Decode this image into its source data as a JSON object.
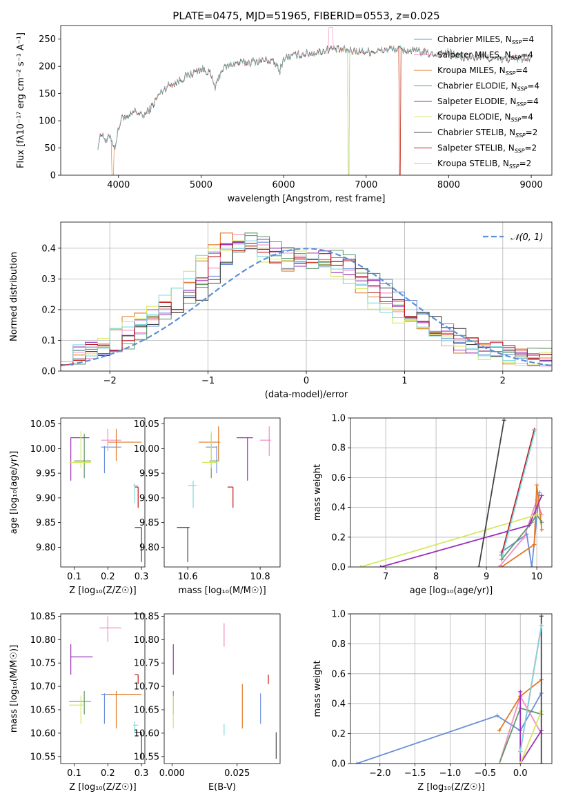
{
  "colors": {
    "chabrier_miles": "#6a8fd8",
    "salpeter_miles": "#f08cc0",
    "kroupa_miles": "#e07a25",
    "chabrier_elodie": "#5f9a68",
    "salpeter_elodie": "#9a30b8",
    "kroupa_elodie": "#d6e860",
    "chabrier_stelib": "#444444",
    "salpeter_stelib": "#c01818",
    "kroupa_stelib": "#7fd8e0",
    "gauss": "#5b8fd6"
  },
  "chart_data": [
    {
      "id": "spectrum",
      "type": "line",
      "title": "PLATE=0475, MJD=51965, FIBERID=0553, z=0.025",
      "xlabel": "wavelength [Angstrom, rest frame]",
      "ylabel": "Flux [fλ10⁻¹⁷ erg cm⁻² s⁻¹ A⁻¹]",
      "xlim": [
        3300,
        9250
      ],
      "ylim": [
        0,
        275
      ],
      "xticks": [
        4000,
        5000,
        6000,
        7000,
        8000,
        9000
      ],
      "yticks": [
        0,
        50,
        100,
        150,
        200,
        250
      ],
      "legend_position": "top-right",
      "legend": [
        "Chabrier MILES, N_SSP=4",
        "Salpeter MILES, N_SSP=4",
        "Kroupa MILES, N_SSP=4",
        "Chabrier ELODIE, N_SSP=4",
        "Salpeter ELODIE, N_SSP=4",
        "Kroupa ELODIE, N_SSP=4",
        "Chabrier STELIB, N_SSP=2",
        "Salpeter STELIB, N_SSP=2",
        "Kroupa STELIB, N_SSP=2"
      ],
      "continuum": [
        [
          3750,
          55
        ],
        [
          3800,
          80
        ],
        [
          3850,
          60
        ],
        [
          3900,
          75
        ],
        [
          3950,
          48
        ],
        [
          4000,
          85
        ],
        [
          4050,
          110
        ],
        [
          4100,
          102
        ],
        [
          4200,
          118
        ],
        [
          4300,
          108
        ],
        [
          4400,
          125
        ],
        [
          4500,
          150
        ],
        [
          4600,
          165
        ],
        [
          4700,
          170
        ],
        [
          4800,
          180
        ],
        [
          4900,
          188
        ],
        [
          5000,
          195
        ],
        [
          5100,
          190
        ],
        [
          5175,
          160
        ],
        [
          5250,
          195
        ],
        [
          5400,
          205
        ],
        [
          5600,
          208
        ],
        [
          5800,
          212
        ],
        [
          5900,
          205
        ],
        [
          5950,
          190
        ],
        [
          6000,
          215
        ],
        [
          6200,
          222
        ],
        [
          6400,
          225
        ],
        [
          6563,
          232
        ],
        [
          6700,
          230
        ],
        [
          6900,
          228
        ],
        [
          7100,
          227
        ],
        [
          7300,
          232
        ],
        [
          7600,
          228
        ],
        [
          7800,
          222
        ],
        [
          8000,
          225
        ],
        [
          8200,
          215
        ],
        [
          8400,
          218
        ],
        [
          8600,
          212
        ],
        [
          8800,
          215
        ],
        [
          8990,
          213
        ]
      ]
    },
    {
      "id": "residuals",
      "type": "histogram",
      "xlabel": "(data-model)/error",
      "ylabel": "Normed distribution",
      "xlim": [
        -2.5,
        2.5
      ],
      "ylim": [
        0,
        0.485
      ],
      "xticks": [
        -2,
        -1,
        0,
        1,
        2
      ],
      "yticks": [
        0.0,
        0.1,
        0.2,
        0.3,
        0.4
      ],
      "legend_position": "top-right",
      "gauss_label": "𝒩(0, 1)",
      "shape": [
        0.05,
        0.06,
        0.065,
        0.07,
        0.09,
        0.12,
        0.15,
        0.18,
        0.2,
        0.23,
        0.26,
        0.31,
        0.36,
        0.4,
        0.42,
        0.415,
        0.4,
        0.38,
        0.36,
        0.35,
        0.37,
        0.37,
        0.35,
        0.33,
        0.3,
        0.27,
        0.23,
        0.2,
        0.18,
        0.15,
        0.13,
        0.11,
        0.095,
        0.08,
        0.07,
        0.065,
        0.06,
        0.05,
        0.045,
        0.04
      ]
    },
    {
      "id": "age_vs_Z",
      "type": "scatter",
      "xlabel": "Z [log₁₀(Z/Z☉)]",
      "ylabel": "age  [log₁₀(age/yr)]",
      "xlim": [
        0.06,
        0.31
      ],
      "ylim": [
        9.76,
        10.062
      ],
      "xticks": [
        0.1,
        0.2,
        0.3
      ],
      "yticks": [
        9.8,
        9.85,
        9.9,
        9.95,
        10.0,
        10.05
      ],
      "points": [
        {
          "s": "chabrier_miles",
          "x": 0.19,
          "y": 10.003,
          "xlo": 0.18,
          "xhi": 0.24,
          "ylo": 9.95,
          "yhi": 10.005
        },
        {
          "s": "salpeter_miles",
          "x": 0.2,
          "y": 10.017,
          "xlo": 0.18,
          "xhi": 0.24,
          "ylo": 9.995,
          "yhi": 10.04
        },
        {
          "s": "kroupa_miles",
          "x": 0.225,
          "y": 10.013,
          "xlo": 0.2,
          "xhi": 0.3,
          "ylo": 9.975,
          "yhi": 10.04
        },
        {
          "s": "chabrier_elodie",
          "x": 0.13,
          "y": 9.975,
          "xlo": 0.1,
          "xhi": 0.15,
          "ylo": 9.94,
          "yhi": 10.03
        },
        {
          "s": "salpeter_elodie",
          "x": 0.09,
          "y": 10.022,
          "xlo": 0.09,
          "xhi": 0.145,
          "ylo": 9.935,
          "yhi": 10.022
        },
        {
          "s": "kroupa_elodie",
          "x": 0.12,
          "y": 9.972,
          "xlo": 0.085,
          "xhi": 0.15,
          "ylo": 9.96,
          "yhi": 10.035
        },
        {
          "s": "chabrier_stelib",
          "x": 0.3,
          "y": 9.84,
          "xlo": 0.28,
          "xhi": 0.3,
          "ylo": 9.77,
          "yhi": 9.84
        },
        {
          "s": "salpeter_stelib",
          "x": 0.29,
          "y": 9.922,
          "xlo": 0.28,
          "xhi": 0.29,
          "ylo": 9.88,
          "yhi": 9.922
        },
        {
          "s": "kroupa_stelib",
          "x": 0.28,
          "y": 9.925,
          "xlo": 0.275,
          "xhi": 0.29,
          "ylo": 9.89,
          "yhi": 9.93
        }
      ]
    },
    {
      "id": "age_vs_mass",
      "type": "scatter",
      "xlabel": "mass [log₁₀(M/M☉)]",
      "ylabel": "",
      "xlim": [
        10.535,
        10.855
      ],
      "ylim": [
        9.76,
        10.062
      ],
      "xticks": [
        10.6,
        10.8
      ],
      "yticks": [
        9.8,
        9.85,
        9.9,
        9.95,
        10.0,
        10.05
      ],
      "points": [
        {
          "s": "chabrier_miles",
          "x": 10.68,
          "y": 10.003,
          "xlo": 10.65,
          "xhi": 10.68,
          "ylo": 9.95,
          "yhi": 10.005
        },
        {
          "s": "salpeter_miles",
          "x": 10.825,
          "y": 10.017,
          "xlo": 10.8,
          "xhi": 10.83,
          "ylo": 9.985,
          "yhi": 10.045
        },
        {
          "s": "kroupa_miles",
          "x": 10.685,
          "y": 10.013,
          "xlo": 10.63,
          "xhi": 10.69,
          "ylo": 9.975,
          "yhi": 10.045
        },
        {
          "s": "chabrier_elodie",
          "x": 10.665,
          "y": 9.975,
          "xlo": 10.66,
          "xhi": 10.685,
          "ylo": 9.94,
          "yhi": 10.03
        },
        {
          "s": "salpeter_elodie",
          "x": 10.765,
          "y": 10.022,
          "xlo": 10.735,
          "xhi": 10.78,
          "ylo": 9.935,
          "yhi": 10.022
        },
        {
          "s": "kroupa_elodie",
          "x": 10.665,
          "y": 9.972,
          "xlo": 10.64,
          "xhi": 10.68,
          "ylo": 9.96,
          "yhi": 10.035
        },
        {
          "s": "chabrier_stelib",
          "x": 10.6,
          "y": 9.84,
          "xlo": 10.57,
          "xhi": 10.605,
          "ylo": 9.77,
          "yhi": 9.84
        },
        {
          "s": "salpeter_stelib",
          "x": 10.725,
          "y": 9.922,
          "xlo": 10.71,
          "xhi": 10.725,
          "ylo": 9.88,
          "yhi": 9.922
        },
        {
          "s": "kroupa_stelib",
          "x": 10.615,
          "y": 9.925,
          "xlo": 10.6,
          "xhi": 10.625,
          "ylo": 9.88,
          "yhi": 9.935
        }
      ]
    },
    {
      "id": "mass_vs_Z",
      "type": "scatter",
      "xlabel": "Z [log₁₀(Z/Z☉)]",
      "ylabel": "mass [log₁₀(M/M☉)]",
      "xlim": [
        0.06,
        0.31
      ],
      "ylim": [
        10.535,
        10.855
      ],
      "xticks": [
        0.1,
        0.2,
        0.3
      ],
      "yticks": [
        10.55,
        10.6,
        10.65,
        10.7,
        10.75,
        10.8,
        10.85
      ],
      "points": [
        {
          "s": "chabrier_miles",
          "x": 0.19,
          "y": 10.683,
          "xlo": 0.18,
          "xhi": 0.215,
          "ylo": 10.62,
          "yhi": 10.685
        },
        {
          "s": "salpeter_miles",
          "x": 0.2,
          "y": 10.825,
          "xlo": 0.175,
          "xhi": 0.24,
          "ylo": 10.795,
          "yhi": 10.85
        },
        {
          "s": "kroupa_miles",
          "x": 0.225,
          "y": 10.683,
          "xlo": 0.2,
          "xhi": 0.3,
          "ylo": 10.61,
          "yhi": 10.69
        },
        {
          "s": "chabrier_elodie",
          "x": 0.13,
          "y": 10.668,
          "xlo": 0.085,
          "xhi": 0.15,
          "ylo": 10.64,
          "yhi": 10.69
        },
        {
          "s": "salpeter_elodie",
          "x": 0.09,
          "y": 10.763,
          "xlo": 0.09,
          "xhi": 0.155,
          "ylo": 10.725,
          "yhi": 10.79
        },
        {
          "s": "kroupa_elodie",
          "x": 0.12,
          "y": 10.66,
          "xlo": 0.085,
          "xhi": 0.13,
          "ylo": 10.62,
          "yhi": 10.68
        },
        {
          "s": "chabrier_stelib",
          "x": 0.3,
          "y": 10.602,
          "xlo": 0.28,
          "xhi": 0.3,
          "ylo": 10.545,
          "yhi": 10.602
        },
        {
          "s": "salpeter_stelib",
          "x": 0.29,
          "y": 10.725,
          "xlo": 0.28,
          "xhi": 0.29,
          "ylo": 10.705,
          "yhi": 10.725
        },
        {
          "s": "kroupa_stelib",
          "x": 0.28,
          "y": 10.617,
          "xlo": 0.275,
          "xhi": 0.29,
          "ylo": 10.6,
          "yhi": 10.625
        }
      ]
    },
    {
      "id": "mass_vs_EBV",
      "type": "scatter",
      "xlabel": "E(B-V)",
      "ylabel": "",
      "xlim": [
        -0.003,
        0.0415
      ],
      "ylim": [
        10.535,
        10.855
      ],
      "xticks": [
        0.0,
        0.025
      ],
      "xtick_labels": [
        "0.000",
        "0.025"
      ],
      "yticks": [
        10.55,
        10.6,
        10.65,
        10.7,
        10.75,
        10.8,
        10.85
      ],
      "points": [
        {
          "s": "chabrier_miles",
          "x": 0.034,
          "y": 10.65,
          "xlo": 0.034,
          "xhi": 0.034,
          "ylo": 10.62,
          "yhi": 10.685
        },
        {
          "s": "salpeter_miles",
          "x": 0.02,
          "y": 10.81,
          "xlo": 0.02,
          "xhi": 0.02,
          "ylo": 10.785,
          "yhi": 10.835
        },
        {
          "s": "kroupa_miles",
          "x": 0.027,
          "y": 10.66,
          "xlo": 0.027,
          "xhi": 0.027,
          "ylo": 10.61,
          "yhi": 10.705
        },
        {
          "s": "chabrier_elodie",
          "x": 0.0005,
          "y": 10.66,
          "xlo": 0.0005,
          "xhi": 0.0005,
          "ylo": 10.64,
          "yhi": 10.69
        },
        {
          "s": "salpeter_elodie",
          "x": 0.0005,
          "y": 10.76,
          "xlo": 0.0005,
          "xhi": 0.0005,
          "ylo": 10.725,
          "yhi": 10.79
        },
        {
          "s": "kroupa_elodie",
          "x": 0.0005,
          "y": 10.65,
          "xlo": 0.0005,
          "xhi": 0.0005,
          "ylo": 10.61,
          "yhi": 10.68
        },
        {
          "s": "chabrier_stelib",
          "x": 0.04,
          "y": 10.575,
          "xlo": 0.04,
          "xhi": 0.04,
          "ylo": 10.545,
          "yhi": 10.602
        },
        {
          "s": "salpeter_stelib",
          "x": 0.037,
          "y": 10.715,
          "xlo": 0.037,
          "xhi": 0.037,
          "ylo": 10.705,
          "yhi": 10.725
        },
        {
          "s": "kroupa_stelib",
          "x": 0.02,
          "y": 10.607,
          "xlo": 0.02,
          "xhi": 0.02,
          "ylo": 10.595,
          "yhi": 10.62
        }
      ]
    },
    {
      "id": "weight_vs_age",
      "type": "line",
      "xlabel": "age  [log₁₀(age/yr)]",
      "ylabel": "mass weight",
      "xlim": [
        6.3,
        10.3
      ],
      "ylim": [
        0,
        1.0
      ],
      "xticks": [
        7,
        8,
        9,
        10
      ],
      "yticks": [
        0.0,
        0.2,
        0.4,
        0.6,
        0.8,
        1.0
      ],
      "series": [
        {
          "s": "chabrier_miles",
          "points": [
            [
              9.3,
              0.1
            ],
            [
              9.8,
              0.22
            ],
            [
              9.9,
              0.0
            ],
            [
              10.05,
              0.5
            ]
          ]
        },
        {
          "s": "salpeter_miles",
          "points": [
            [
              9.25,
              0.0
            ],
            [
              9.75,
              0.2
            ],
            [
              10.0,
              0.45
            ],
            [
              10.1,
              0.35
            ]
          ]
        },
        {
          "s": "kroupa_miles",
          "points": [
            [
              9.3,
              0.0
            ],
            [
              9.95,
              0.15
            ],
            [
              10.0,
              0.55
            ],
            [
              10.1,
              0.25
            ]
          ]
        },
        {
          "s": "chabrier_elodie",
          "points": [
            [
              9.3,
              0.05
            ],
            [
              9.9,
              0.3
            ],
            [
              10.0,
              0.35
            ],
            [
              10.1,
              0.3
            ]
          ]
        },
        {
          "s": "salpeter_elodie",
          "points": [
            [
              6.9,
              0.0
            ],
            [
              9.85,
              0.28
            ],
            [
              10.1,
              0.48
            ]
          ]
        },
        {
          "s": "kroupa_elodie",
          "points": [
            [
              6.5,
              0.0
            ],
            [
              10.0,
              0.35
            ]
          ]
        },
        {
          "s": "chabrier_stelib",
          "points": [
            [
              8.85,
              0.0
            ],
            [
              9.35,
              0.985
            ]
          ]
        },
        {
          "s": "salpeter_stelib",
          "points": [
            [
              9.3,
              0.08
            ],
            [
              9.95,
              0.92
            ]
          ]
        },
        {
          "s": "kroupa_stelib",
          "points": [
            [
              9.32,
              0.08
            ],
            [
              9.97,
              0.92
            ]
          ]
        }
      ]
    },
    {
      "id": "weight_vs_Z",
      "type": "line",
      "xlabel": "Z [log₁₀(Z/Z☉)]",
      "ylabel": "mass weight",
      "xlim": [
        -2.42,
        0.45
      ],
      "ylim": [
        0,
        1.0
      ],
      "xticks": [
        -2.0,
        -1.5,
        -1.0,
        -0.5,
        0.0
      ],
      "xtick_labels": [
        "−2.0",
        "−1.5",
        "−1.0",
        "−0.5",
        "0.0"
      ],
      "yticks": [
        0.0,
        0.2,
        0.4,
        0.6,
        0.8,
        1.0
      ],
      "series": [
        {
          "s": "chabrier_miles",
          "points": [
            [
              -2.33,
              0.0
            ],
            [
              -0.33,
              0.32
            ],
            [
              0.0,
              0.22
            ],
            [
              0.3,
              0.47
            ]
          ]
        },
        {
          "s": "salpeter_miles",
          "points": [
            [
              -0.3,
              0.0
            ],
            [
              0.0,
              0.45
            ],
            [
              0.3,
              0.2
            ]
          ]
        },
        {
          "s": "kroupa_miles",
          "points": [
            [
              -0.3,
              0.22
            ],
            [
              0.0,
              0.45
            ],
            [
              0.3,
              0.56
            ]
          ]
        },
        {
          "s": "chabrier_elodie",
          "points": [
            [
              -0.3,
              0.0
            ],
            [
              0.0,
              0.37
            ],
            [
              0.3,
              0.33
            ]
          ]
        },
        {
          "s": "salpeter_elodie",
          "points": [
            [
              0.0,
              0.48
            ],
            [
              0.0,
              0.0
            ],
            [
              0.3,
              0.22
            ]
          ]
        },
        {
          "s": "kroupa_elodie",
          "points": [
            [
              -0.3,
              0.0
            ],
            [
              0.0,
              0.0
            ],
            [
              0.3,
              0.35
            ]
          ]
        },
        {
          "s": "chabrier_stelib",
          "points": [
            [
              0.3,
              0.0
            ],
            [
              0.3,
              0.985
            ]
          ]
        },
        {
          "s": "salpeter_stelib",
          "points": [
            [
              0.0,
              0.08
            ],
            [
              0.3,
              0.92
            ]
          ]
        },
        {
          "s": "kroupa_stelib",
          "points": [
            [
              0.0,
              0.08
            ],
            [
              0.3,
              0.92
            ]
          ]
        }
      ]
    }
  ]
}
